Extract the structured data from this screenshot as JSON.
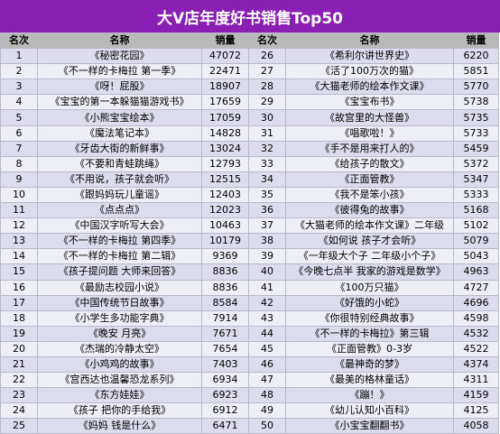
{
  "title": "大V店年度好书销售Top50",
  "headers": {
    "rank": "名次",
    "name": "名称",
    "sales": "销量"
  },
  "rows": [
    {
      "l": {
        "rank": "1",
        "name": "《秘密花园》",
        "sales": "47072"
      },
      "r": {
        "rank": "26",
        "name": "《希利尔讲世界史》",
        "sales": "6220"
      }
    },
    {
      "l": {
        "rank": "2",
        "name": "《不一样的卡梅拉 第一季》",
        "sales": "22471"
      },
      "r": {
        "rank": "27",
        "name": "《活了100万次的猫》",
        "sales": "5851"
      }
    },
    {
      "l": {
        "rank": "3",
        "name": "《呀！屁股》",
        "sales": "18907"
      },
      "r": {
        "rank": "28",
        "name": "《大猫老师的绘本作文课》",
        "sales": "5770"
      }
    },
    {
      "l": {
        "rank": "4",
        "name": "《宝宝的第一本躲猫猫游戏书》",
        "sales": "17659"
      },
      "r": {
        "rank": "29",
        "name": "《宝宝布书》",
        "sales": "5738"
      }
    },
    {
      "l": {
        "rank": "5",
        "name": "《小熊宝宝绘本》",
        "sales": "17059"
      },
      "r": {
        "rank": "30",
        "name": "《故宫里的大怪兽》",
        "sales": "5735"
      }
    },
    {
      "l": {
        "rank": "6",
        "name": "《魔法笔记本》",
        "sales": "14828"
      },
      "r": {
        "rank": "31",
        "name": "《唱歌啦！》",
        "sales": "5733"
      }
    },
    {
      "l": {
        "rank": "7",
        "name": "《牙齿大街的新鲜事》",
        "sales": "13024"
      },
      "r": {
        "rank": "32",
        "name": "《手不是用来打人的》",
        "sales": "5459"
      }
    },
    {
      "l": {
        "rank": "8",
        "name": "《不要和青蛙跳绳》",
        "sales": "12793"
      },
      "r": {
        "rank": "33",
        "name": "《给孩子的散文》",
        "sales": "5372"
      }
    },
    {
      "l": {
        "rank": "9",
        "name": "《不用说，孩子就会听》",
        "sales": "12515"
      },
      "r": {
        "rank": "34",
        "name": "《正面管教》",
        "sales": "5347"
      }
    },
    {
      "l": {
        "rank": "10",
        "name": "《跟妈妈玩儿童谣》",
        "sales": "12403"
      },
      "r": {
        "rank": "35",
        "name": "《我不是笨小孩》",
        "sales": "5333"
      }
    },
    {
      "l": {
        "rank": "11",
        "name": "《点点点》",
        "sales": "12023"
      },
      "r": {
        "rank": "36",
        "name": "《彼得兔的故事》",
        "sales": "5168"
      }
    },
    {
      "l": {
        "rank": "12",
        "name": "《中国汉字听写大会》",
        "sales": "10463"
      },
      "r": {
        "rank": "37",
        "name": "《大猫老师的绘本作文课》二年级",
        "sales": "5102"
      }
    },
    {
      "l": {
        "rank": "13",
        "name": "《不一样的卡梅拉 第四季》",
        "sales": "10179"
      },
      "r": {
        "rank": "38",
        "name": "《如何说 孩子才会听》",
        "sales": "5079"
      }
    },
    {
      "l": {
        "rank": "14",
        "name": "《不一样的卡梅拉 第二辑》",
        "sales": "9369"
      },
      "r": {
        "rank": "39",
        "name": "《一年级大个子 二年级小个子》",
        "sales": "5043"
      }
    },
    {
      "l": {
        "rank": "15",
        "name": "《孩子提问题 大师来回答》",
        "sales": "8836"
      },
      "r": {
        "rank": "40",
        "name": "《今晚七点半 我家的游戏是数学》",
        "sales": "4963"
      }
    },
    {
      "l": {
        "rank": "16",
        "name": "《最励志校园小说》",
        "sales": "8836"
      },
      "r": {
        "rank": "41",
        "name": "《100万只猫》",
        "sales": "4727"
      }
    },
    {
      "l": {
        "rank": "17",
        "name": "《中国传统节日故事》",
        "sales": "8584"
      },
      "r": {
        "rank": "42",
        "name": "《好饿的小蛇》",
        "sales": "4696"
      }
    },
    {
      "l": {
        "rank": "18",
        "name": "《小学生多功能字典》",
        "sales": "7914"
      },
      "r": {
        "rank": "43",
        "name": "《你很特别经典故事》",
        "sales": "4598"
      }
    },
    {
      "l": {
        "rank": "19",
        "name": "《晚安 月亮》",
        "sales": "7671"
      },
      "r": {
        "rank": "44",
        "name": "《不一样的卡梅拉》第三辑",
        "sales": "4532"
      }
    },
    {
      "l": {
        "rank": "20",
        "name": "《杰瑞的冷静太空》",
        "sales": "7654"
      },
      "r": {
        "rank": "45",
        "name": "《正面管教》0-3岁",
        "sales": "4522"
      }
    },
    {
      "l": {
        "rank": "21",
        "name": "《小鸡鸡的故事》",
        "sales": "7403"
      },
      "r": {
        "rank": "46",
        "name": "《最神奇的梦》",
        "sales": "4374"
      }
    },
    {
      "l": {
        "rank": "22",
        "name": "《宫西达也温馨恐龙系列》",
        "sales": "6934"
      },
      "r": {
        "rank": "47",
        "name": "《最美的格林童话》",
        "sales": "4311"
      }
    },
    {
      "l": {
        "rank": "23",
        "name": "《东方娃娃》",
        "sales": "6923"
      },
      "r": {
        "rank": "48",
        "name": "《蹦！》",
        "sales": "4159"
      }
    },
    {
      "l": {
        "rank": "24",
        "name": "《孩子 把你的手给我》",
        "sales": "6912"
      },
      "r": {
        "rank": "49",
        "name": "《幼儿认知小百科》",
        "sales": "4125"
      }
    },
    {
      "l": {
        "rank": "25",
        "name": "《妈妈 钱是什么》",
        "sales": "6471"
      },
      "r": {
        "rank": "50",
        "name": "《小宝宝翻翻书》",
        "sales": "4058"
      }
    }
  ],
  "colors": {
    "title_bg": "#8a1fb3",
    "header_bg": "#b9b9b9",
    "row_odd": "#dcdcec",
    "row_even": "#eeeef7"
  }
}
